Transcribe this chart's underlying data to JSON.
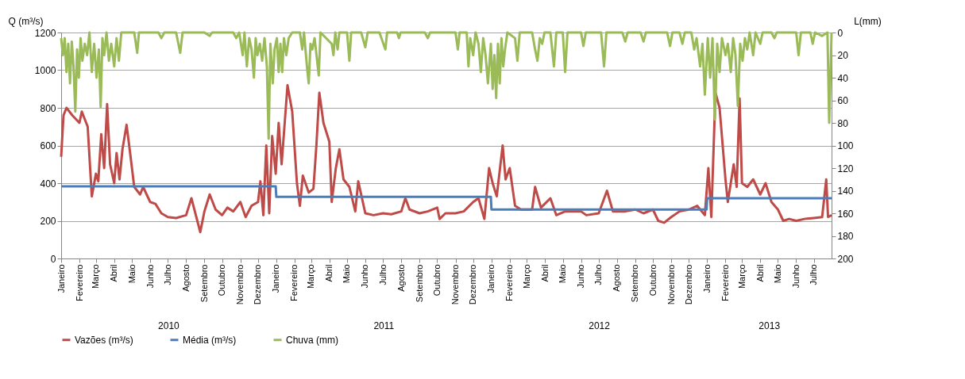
{
  "chart_data": {
    "type": "line",
    "ylabel": "Q (m³/s)",
    "y2label": "L(mm)",
    "ylim": [
      0,
      1200
    ],
    "yticks": [
      0,
      200,
      400,
      600,
      800,
      1000,
      1200
    ],
    "y2lim": [
      200,
      0
    ],
    "y2ticks": [
      0,
      20,
      40,
      60,
      80,
      100,
      120,
      140,
      160,
      180,
      200
    ],
    "xlim": [
      "2010-01-01",
      "2013-07-31"
    ],
    "xticks": [
      {
        "value": "2010-01-01",
        "label": "Janeiro"
      },
      {
        "value": "2010-02-01",
        "label": "Fevereiro"
      },
      {
        "value": "2010-03-01",
        "label": "Março"
      },
      {
        "value": "2010-04-01",
        "label": "Abril"
      },
      {
        "value": "2010-05-01",
        "label": "Maio"
      },
      {
        "value": "2010-06-01",
        "label": "Junho"
      },
      {
        "value": "2010-07-01",
        "label": "Julho"
      },
      {
        "value": "2010-08-01",
        "label": "Agosto"
      },
      {
        "value": "2010-09-01",
        "label": "Setembro"
      },
      {
        "value": "2010-10-01",
        "label": "Outubro"
      },
      {
        "value": "2010-11-01",
        "label": "Novembro"
      },
      {
        "value": "2010-12-01",
        "label": "Dezembro"
      },
      {
        "value": "2011-01-01",
        "label": "Janeiro"
      },
      {
        "value": "2011-02-01",
        "label": "Fevereiro"
      },
      {
        "value": "2011-03-01",
        "label": "Março"
      },
      {
        "value": "2011-04-01",
        "label": "Abril"
      },
      {
        "value": "2011-05-01",
        "label": "Maio"
      },
      {
        "value": "2011-06-01",
        "label": "Junho"
      },
      {
        "value": "2011-07-01",
        "label": "Julho"
      },
      {
        "value": "2011-08-01",
        "label": "Agosto"
      },
      {
        "value": "2011-09-01",
        "label": "Setembro"
      },
      {
        "value": "2011-10-01",
        "label": "Outubro"
      },
      {
        "value": "2011-11-01",
        "label": "Novembro"
      },
      {
        "value": "2011-12-01",
        "label": "Dezembro"
      },
      {
        "value": "2012-01-01",
        "label": "Janeiro"
      },
      {
        "value": "2012-02-01",
        "label": "Fevereiro"
      },
      {
        "value": "2012-03-01",
        "label": "Março"
      },
      {
        "value": "2012-04-01",
        "label": "Abril"
      },
      {
        "value": "2012-05-01",
        "label": "Maio"
      },
      {
        "value": "2012-06-01",
        "label": "Junho"
      },
      {
        "value": "2012-07-01",
        "label": "Julho"
      },
      {
        "value": "2012-08-01",
        "label": "Agosto"
      },
      {
        "value": "2012-09-01",
        "label": "Setembro"
      },
      {
        "value": "2012-10-01",
        "label": "Outubro"
      },
      {
        "value": "2012-11-01",
        "label": "Novembro"
      },
      {
        "value": "2012-12-01",
        "label": "Dezembro"
      },
      {
        "value": "2013-01-01",
        "label": "Janeiro"
      },
      {
        "value": "2013-02-01",
        "label": "Fevereiro"
      },
      {
        "value": "2013-03-01",
        "label": "Março"
      },
      {
        "value": "2013-04-01",
        "label": "Abril"
      },
      {
        "value": "2013-05-01",
        "label": "Maio"
      },
      {
        "value": "2013-06-01",
        "label": "Junho"
      },
      {
        "value": "2013-07-01",
        "label": "Julho"
      }
    ],
    "grid": "y",
    "legend": "bottom",
    "annotations": [
      "2010",
      "2011",
      "2012",
      "2013"
    ],
    "series": [
      {
        "name": "Vazões (m³/s)",
        "color": "#be4b48",
        "x": [
          "2010-01-01",
          "2010-01-05",
          "2010-01-10",
          "2010-01-20",
          "2010-02-01",
          "2010-02-05",
          "2010-02-15",
          "2010-02-22",
          "2010-03-01",
          "2010-03-05",
          "2010-03-10",
          "2010-03-15",
          "2010-03-20",
          "2010-03-25",
          "2010-04-01",
          "2010-04-05",
          "2010-04-10",
          "2010-04-15",
          "2010-04-22",
          "2010-04-28",
          "2010-05-05",
          "2010-05-15",
          "2010-05-20",
          "2010-06-01",
          "2010-06-10",
          "2010-06-20",
          "2010-07-01",
          "2010-07-15",
          "2010-08-01",
          "2010-08-10",
          "2010-08-20",
          "2010-08-25",
          "2010-09-01",
          "2010-09-10",
          "2010-09-20",
          "2010-10-01",
          "2010-10-10",
          "2010-10-20",
          "2010-11-01",
          "2010-11-10",
          "2010-11-20",
          "2010-12-01",
          "2010-12-05",
          "2010-12-10",
          "2010-12-15",
          "2010-12-20",
          "2010-12-25",
          "2010-12-31",
          "2011-01-05",
          "2011-01-10",
          "2011-01-20",
          "2011-01-28",
          "2011-02-05",
          "2011-02-10",
          "2011-02-15",
          "2011-02-25",
          "2011-03-05",
          "2011-03-10",
          "2011-03-15",
          "2011-03-22",
          "2011-04-01",
          "2011-04-05",
          "2011-04-12",
          "2011-04-18",
          "2011-04-25",
          "2011-05-05",
          "2011-05-15",
          "2011-05-20",
          "2011-06-01",
          "2011-06-15",
          "2011-07-01",
          "2011-07-15",
          "2011-08-01",
          "2011-08-08",
          "2011-08-15",
          "2011-09-01",
          "2011-09-15",
          "2011-10-01",
          "2011-10-05",
          "2011-10-15",
          "2011-11-01",
          "2011-11-15",
          "2011-12-01",
          "2011-12-10",
          "2011-12-20",
          "2011-12-28",
          "2012-01-03",
          "2012-01-10",
          "2012-01-20",
          "2012-01-25",
          "2012-02-01",
          "2012-02-10",
          "2012-02-20",
          "2012-03-10",
          "2012-03-15",
          "2012-03-25",
          "2012-04-10",
          "2012-04-20",
          "2012-05-05",
          "2012-06-01",
          "2012-06-10",
          "2012-07-01",
          "2012-07-15",
          "2012-07-25",
          "2012-08-15",
          "2012-09-01",
          "2012-09-15",
          "2012-10-01",
          "2012-10-10",
          "2012-10-20",
          "2012-11-01",
          "2012-11-15",
          "2012-12-01",
          "2012-12-15",
          "2012-12-28",
          "2013-01-03",
          "2013-01-08",
          "2013-01-15",
          "2013-01-22",
          "2013-02-01",
          "2013-02-05",
          "2013-02-15",
          "2013-02-20",
          "2013-02-25",
          "2013-03-01",
          "2013-03-10",
          "2013-03-20",
          "2013-04-01",
          "2013-04-10",
          "2013-04-20",
          "2013-05-01",
          "2013-05-10",
          "2013-05-20",
          "2013-06-01",
          "2013-06-15",
          "2013-07-01",
          "2013-07-15",
          "2013-07-22",
          "2013-07-25",
          "2013-07-31"
        ],
        "values": [
          540,
          760,
          800,
          760,
          720,
          780,
          700,
          330,
          450,
          410,
          660,
          480,
          820,
          500,
          400,
          560,
          420,
          580,
          710,
          560,
          380,
          340,
          380,
          300,
          290,
          240,
          220,
          215,
          230,
          320,
          200,
          140,
          250,
          340,
          260,
          230,
          270,
          250,
          300,
          220,
          280,
          300,
          410,
          230,
          600,
          240,
          650,
          450,
          720,
          500,
          920,
          780,
          400,
          280,
          440,
          350,
          370,
          600,
          880,
          720,
          620,
          300,
          480,
          580,
          420,
          380,
          250,
          410,
          240,
          230,
          240,
          235,
          250,
          320,
          260,
          240,
          250,
          270,
          210,
          240,
          240,
          250,
          300,
          320,
          210,
          480,
          400,
          330,
          600,
          420,
          480,
          280,
          260,
          260,
          380,
          270,
          320,
          230,
          250,
          250,
          230,
          240,
          360,
          250,
          250,
          260,
          240,
          260,
          200,
          190,
          220,
          250,
          260,
          280,
          230,
          480,
          220,
          880,
          800,
          420,
          300,
          500,
          380,
          850,
          400,
          380,
          420,
          340,
          400,
          300,
          260,
          200,
          210,
          200,
          210,
          215,
          220,
          420,
          220,
          230
        ]
      },
      {
        "name": "Média (m³/s)",
        "color": "#4a7ebb",
        "x": [
          "2010-01-01",
          "2010-12-31",
          "2011-01-01",
          "2011-12-31",
          "2012-01-01",
          "2012-12-31",
          "2013-01-01",
          "2013-07-31"
        ],
        "values": [
          383,
          383,
          327,
          327,
          260,
          260,
          320,
          320
        ]
      },
      {
        "name": "Chuva (mm)",
        "color": "#9bbb59",
        "axis": "y2",
        "x": [
          "2010-01-01",
          "2010-01-04",
          "2010-01-07",
          "2010-01-10",
          "2010-01-13",
          "2010-01-16",
          "2010-01-19",
          "2010-01-22",
          "2010-01-25",
          "2010-01-28",
          "2010-01-31",
          "2010-02-03",
          "2010-02-06",
          "2010-02-10",
          "2010-02-14",
          "2010-02-18",
          "2010-02-22",
          "2010-02-26",
          "2010-03-02",
          "2010-03-06",
          "2010-03-09",
          "2010-03-12",
          "2010-03-15",
          "2010-03-19",
          "2010-03-23",
          "2010-03-27",
          "2010-04-01",
          "2010-04-05",
          "2010-04-09",
          "2010-04-13",
          "2010-05-05",
          "2010-05-10",
          "2010-05-13",
          "2010-06-15",
          "2010-06-20",
          "2010-06-25",
          "2010-07-15",
          "2010-07-22",
          "2010-07-26",
          "2010-09-01",
          "2010-09-10",
          "2010-09-14",
          "2010-10-20",
          "2010-10-25",
          "2010-10-30",
          "2010-11-05",
          "2010-11-08",
          "2010-11-12",
          "2010-11-16",
          "2010-11-20",
          "2010-11-24",
          "2010-11-27",
          "2010-11-30",
          "2010-12-04",
          "2010-12-08",
          "2010-12-12",
          "2010-12-16",
          "2010-12-19",
          "2010-12-22",
          "2010-12-26",
          "2010-12-29",
          "2011-01-02",
          "2011-01-05",
          "2011-01-08",
          "2011-01-11",
          "2011-01-14",
          "2011-01-18",
          "2011-01-22",
          "2011-01-28",
          "2011-02-10",
          "2011-02-14",
          "2011-02-17",
          "2011-02-22",
          "2011-02-25",
          "2011-02-28",
          "2011-03-03",
          "2011-03-07",
          "2011-03-14",
          "2011-03-17",
          "2011-04-05",
          "2011-04-08",
          "2011-04-11",
          "2011-04-15",
          "2011-04-18",
          "2011-05-01",
          "2011-05-05",
          "2011-05-08",
          "2011-05-25",
          "2011-06-01",
          "2011-06-05",
          "2011-06-25",
          "2011-07-05",
          "2011-07-08",
          "2011-07-25",
          "2011-07-28",
          "2011-07-31",
          "2011-09-10",
          "2011-09-15",
          "2011-09-19",
          "2011-11-01",
          "2011-11-05",
          "2011-11-08",
          "2011-11-20",
          "2011-11-23",
          "2011-11-26",
          "2011-12-01",
          "2011-12-05",
          "2011-12-10",
          "2011-12-14",
          "2011-12-18",
          "2011-12-22",
          "2011-12-26",
          "2011-12-31",
          "2012-01-03",
          "2012-01-06",
          "2012-01-09",
          "2012-01-12",
          "2012-01-15",
          "2012-01-18",
          "2012-01-21",
          "2012-01-24",
          "2012-01-28",
          "2012-02-10",
          "2012-02-14",
          "2012-02-18",
          "2012-03-10",
          "2012-03-15",
          "2012-03-19",
          "2012-03-23",
          "2012-03-27",
          "2012-03-31",
          "2012-04-10",
          "2012-04-16",
          "2012-04-20",
          "2012-05-01",
          "2012-05-05",
          "2012-05-09",
          "2012-06-01",
          "2012-06-05",
          "2012-06-09",
          "2012-07-05",
          "2012-07-10",
          "2012-07-14",
          "2012-08-10",
          "2012-08-15",
          "2012-08-19",
          "2012-09-10",
          "2012-09-15",
          "2012-09-19",
          "2012-10-25",
          "2012-10-30",
          "2012-11-03",
          "2012-11-15",
          "2012-11-20",
          "2012-11-24",
          "2012-12-05",
          "2012-12-10",
          "2012-12-14",
          "2012-12-20",
          "2012-12-24",
          "2012-12-28",
          "2013-01-02",
          "2013-01-06",
          "2013-01-10",
          "2013-01-14",
          "2013-01-18",
          "2013-01-22",
          "2013-01-26",
          "2013-02-01",
          "2013-02-05",
          "2013-02-10",
          "2013-02-14",
          "2013-02-18",
          "2013-02-22",
          "2013-02-26",
          "2013-03-02",
          "2013-03-06",
          "2013-03-10",
          "2013-03-14",
          "2013-03-20",
          "2013-03-24",
          "2013-04-01",
          "2013-04-05",
          "2013-04-20",
          "2013-04-25",
          "2013-04-29",
          "2013-06-01",
          "2013-06-05",
          "2013-06-09",
          "2013-06-25",
          "2013-06-29",
          "2013-07-03",
          "2013-07-15",
          "2013-07-24",
          "2013-07-27",
          "2013-07-31"
        ],
        "values": [
          5,
          20,
          5,
          35,
          10,
          45,
          8,
          30,
          70,
          15,
          40,
          5,
          25,
          10,
          20,
          0,
          35,
          10,
          40,
          15,
          66,
          5,
          20,
          0,
          25,
          10,
          30,
          5,
          25,
          0,
          0,
          18,
          0,
          0,
          5,
          0,
          0,
          18,
          0,
          0,
          3,
          0,
          0,
          5,
          0,
          20,
          0,
          30,
          5,
          15,
          40,
          5,
          20,
          10,
          25,
          5,
          30,
          94,
          10,
          45,
          15,
          5,
          35,
          10,
          35,
          5,
          20,
          5,
          0,
          0,
          15,
          0,
          30,
          45,
          10,
          15,
          5,
          38,
          0,
          10,
          20,
          0,
          15,
          0,
          0,
          25,
          0,
          0,
          13,
          0,
          0,
          15,
          0,
          0,
          5,
          0,
          0,
          5,
          0,
          0,
          15,
          0,
          0,
          30,
          5,
          20,
          0,
          10,
          35,
          5,
          20,
          45,
          10,
          50,
          20,
          58,
          10,
          45,
          5,
          30,
          15,
          0,
          5,
          25,
          0,
          0,
          15,
          25,
          5,
          10,
          0,
          0,
          30,
          0,
          0,
          35,
          0,
          0,
          12,
          0,
          0,
          30,
          0,
          0,
          8,
          0,
          0,
          8,
          0,
          0,
          12,
          0,
          0,
          10,
          0,
          0,
          15,
          5,
          30,
          10,
          55,
          5,
          40,
          5,
          77,
          10,
          35,
          5,
          20,
          10,
          35,
          5,
          20,
          65,
          10,
          25,
          5,
          15,
          0,
          20,
          0,
          10,
          0,
          0,
          5,
          0,
          0,
          20,
          0,
          0,
          10,
          0,
          3,
          0,
          80,
          0
        ]
      }
    ]
  }
}
